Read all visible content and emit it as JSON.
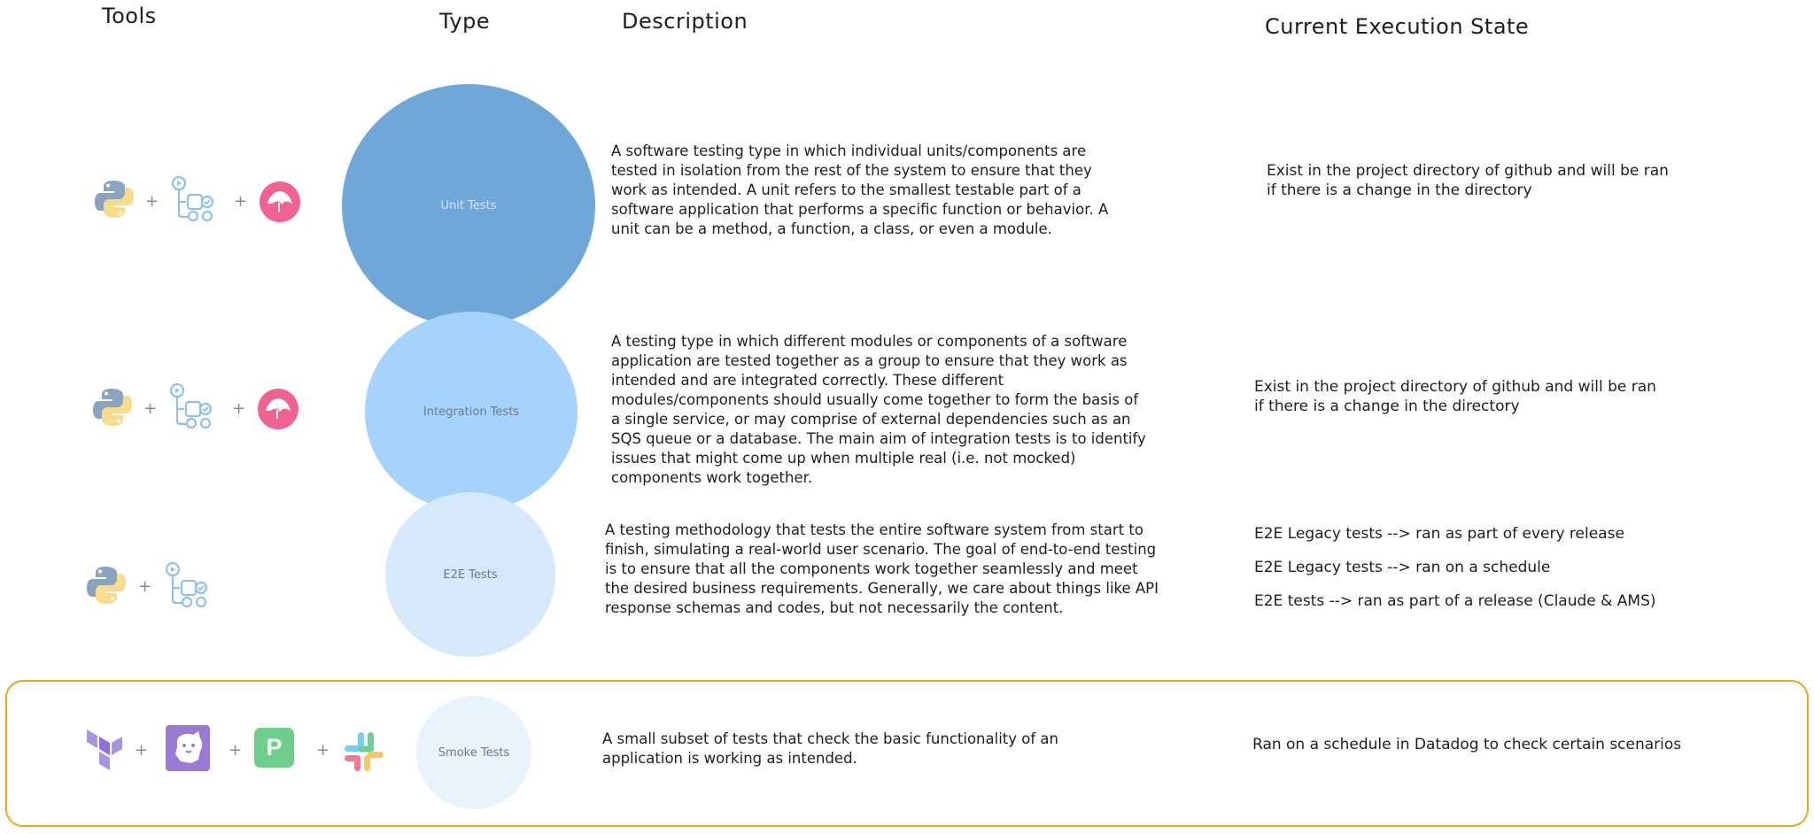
{
  "headers": {
    "tools": "Tools",
    "type": "Type",
    "description": "Description",
    "state": "Current Execution State"
  },
  "rows": [
    {
      "type": "Unit Tests",
      "description": "A software testing type in which individual units/components are tested in isolation from the rest of the system to ensure that they work as intended. A unit refers to the smallest testable part of a software application that performs a specific function or behavior. A unit can be a method, a function, a class, or even a module.",
      "state": [
        "Exist in the project directory of github and will be ran if there is a change in the directory"
      ],
      "tools": [
        "python-icon",
        "github-actions-icon",
        "codecov-icon"
      ]
    },
    {
      "type": "Integration Tests",
      "description": "A testing type in which different modules or components of a software application are tested together as a group to ensure that they work as intended and are integrated correctly. These different modules/components should usually come together to form the basis of a single service, or may comprise of external dependencies such as an SQS queue or a database. The main aim of integration tests is to identify issues that might come up when multiple real (i.e. not mocked) components work together.",
      "state": [
        "Exist in the project directory of github and will be ran if there is a change in the directory"
      ],
      "tools": [
        "python-icon",
        "github-actions-icon",
        "codecov-icon"
      ]
    },
    {
      "type": "E2E Tests",
      "description": "A testing methodology that tests the entire software system from start to finish, simulating a real-world user scenario. The goal of end-to-end testing is to ensure that all the components work together seamlessly and meet the desired business requirements. Generally, we care about things like API response schemas and codes, but not necessarily the content.",
      "state": [
        "E2E Legacy tests --> ran as part of every release",
        "E2E Legacy tests --> ran on a schedule",
        "E2E tests --> ran as part of a release (Claude & AMS)"
      ],
      "tools": [
        "python-icon",
        "github-actions-icon"
      ]
    },
    {
      "type": "Smoke Tests",
      "description": "A small subset of tests that check the basic functionality of an application is working as intended.",
      "state": [
        "Ran on a schedule in Datadog to check certain scenarios"
      ],
      "tools": [
        "terraform-icon",
        "datadog-icon",
        "pagerduty-icon",
        "slack-icon"
      ]
    }
  ],
  "plus_sign": "+",
  "pagerduty_letter": "P",
  "colors": {
    "unit_circle": "#6fa7d8",
    "integration_circle": "#a5d3fb",
    "e2e_circle": "#d5e9fb",
    "smoke_circle": "#e8f3fd",
    "highlight_border": "#e8a914"
  }
}
